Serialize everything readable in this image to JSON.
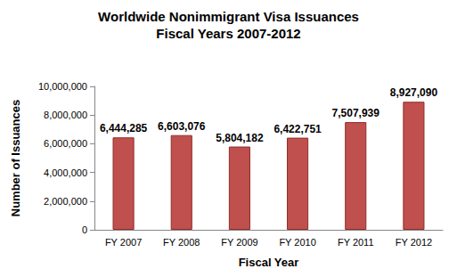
{
  "chart_data": {
    "type": "bar",
    "title": "Worldwide Nonimmigrant Visa Issuances",
    "subtitle": "Fiscal Years 2007-2012",
    "x_label": "Fiscal Year",
    "y_label": "Number of Issuances",
    "categories": [
      "FY 2007",
      "FY 2008",
      "FY 2009",
      "FY 2010",
      "FY 2011",
      "FY 2012"
    ],
    "values": [
      6444285,
      6603076,
      5804182,
      6422751,
      7507939,
      8927090
    ],
    "value_labels": [
      "6,444,285",
      "6,603,076",
      "5,804,182",
      "6,422,751",
      "7,507,939",
      "8,927,090"
    ],
    "color": "#c0504d",
    "ylim": [
      0,
      10000000
    ],
    "yticks": [
      0,
      {
        "value": 2000000,
        "label": "2,000,000"
      },
      {
        "value": 4000000,
        "label": "4,000,000"
      },
      {
        "value": 6000000,
        "label": "6,000,000"
      },
      {
        "value": 8000000,
        "label": "8,000,000"
      },
      {
        "value": 10000000,
        "label": "10,000,000"
      }
    ],
    "grid": false,
    "data_labels": true
  }
}
